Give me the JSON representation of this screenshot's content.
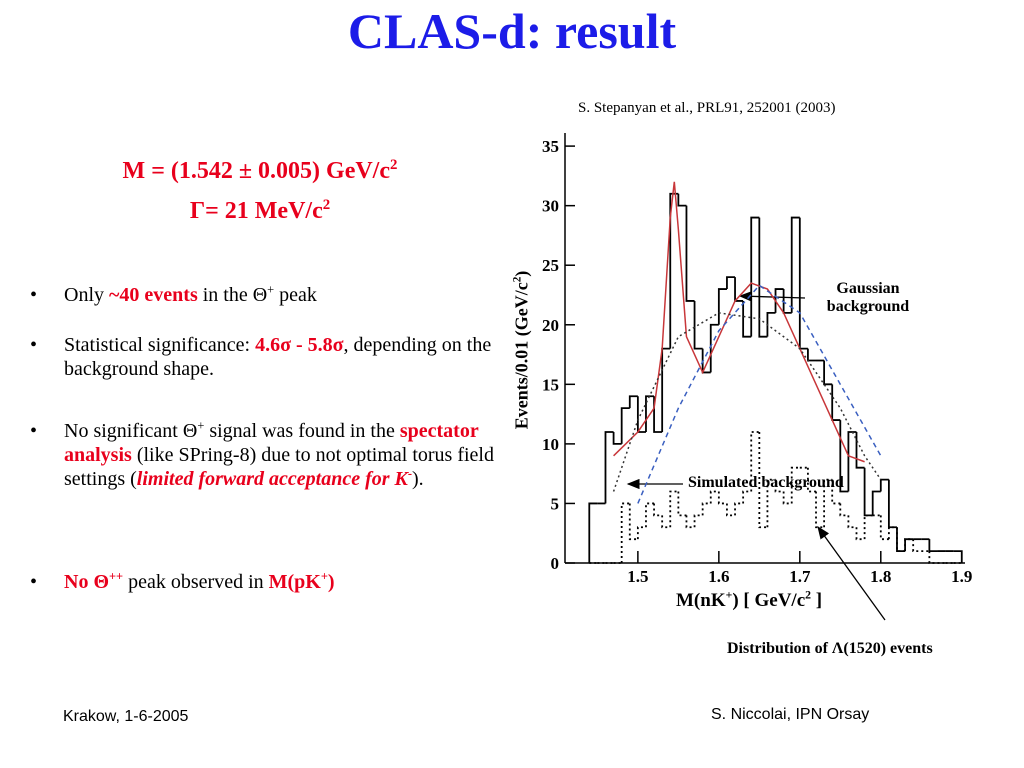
{
  "title": "CLAS-d: result",
  "reference": "S. Stepanyan et al., PRL91, 252001 (2003)",
  "result": [
    {
      "runs": [
        {
          "text": "M = (1.542 ± 0.005) GeV/c"
        },
        {
          "text": "2",
          "sup": true
        }
      ]
    },
    {
      "runs": [
        {
          "text": "Γ= 21 MeV/c"
        },
        {
          "text": "2",
          "sup": true
        }
      ]
    }
  ],
  "bullets": [
    {
      "runs": [
        {
          "text": "Only "
        },
        {
          "text": "~40 events",
          "color": "#e8001c",
          "bold": true
        },
        {
          "text": " in the Θ"
        },
        {
          "text": "+",
          "sup": true
        },
        {
          "text": " peak"
        }
      ]
    },
    {
      "runs": [
        {
          "text": "Statistical significance: "
        },
        {
          "text": "4.6σ - 5.8σ",
          "color": "#e8001c",
          "bold": true
        },
        {
          "text": ", depending on the background shape."
        }
      ]
    },
    {
      "runs": [
        {
          "text": "No significant Θ"
        },
        {
          "text": "+",
          "sup": true
        },
        {
          "text": " signal was found in the "
        },
        {
          "text": "spectator analysis",
          "color": "#e8001c",
          "bold": true
        },
        {
          "text": " (like SPring-8) due to not optimal torus field settings ("
        },
        {
          "text": "limited forward acceptance for K",
          "color": "#e8001c",
          "bold": true,
          "italic": true
        },
        {
          "text": "-",
          "color": "#e8001c",
          "bold": true,
          "sup": true
        },
        {
          "text": ")."
        }
      ]
    },
    {
      "runs": [
        {
          "text": "No Θ",
          "color": "#e8001c",
          "bold": true
        },
        {
          "text": "++",
          "color": "#e8001c",
          "bold": true,
          "sup": true
        },
        {
          "text": " peak observed in "
        },
        {
          "text": "M(pK",
          "color": "#e8001c",
          "bold": true
        },
        {
          "text": "+",
          "color": "#e8001c",
          "bold": true,
          "sup": true
        },
        {
          "text": ")",
          "color": "#e8001c",
          "bold": true
        }
      ]
    }
  ],
  "chart_data": {
    "type": "histogram",
    "xlabel": {
      "runs": [
        {
          "text": "M(nK"
        },
        {
          "text": "+",
          "sup": true
        },
        {
          "text": ") [ GeV/c"
        },
        {
          "text": "2",
          "sup": true
        },
        {
          "text": " ]"
        }
      ]
    },
    "ylabel": {
      "runs": [
        {
          "text": "Events/0.01 (GeV/c"
        },
        {
          "text": "2",
          "sup": true
        },
        {
          "text": ")"
        }
      ]
    },
    "xlim": [
      1.41,
      1.904
    ],
    "ylim": [
      0,
      36.1
    ],
    "xticks": [
      1.5,
      1.6,
      1.7,
      1.8,
      1.9
    ],
    "yticks": [
      0,
      5,
      10,
      15,
      20,
      25,
      30,
      35
    ],
    "bins": [
      1.44,
      1.45,
      1.46,
      1.47,
      1.48,
      1.49,
      1.5,
      1.51,
      1.52,
      1.53,
      1.54,
      1.55,
      1.56,
      1.57,
      1.58,
      1.59,
      1.6,
      1.61,
      1.62,
      1.63,
      1.64,
      1.65,
      1.66,
      1.67,
      1.68,
      1.69,
      1.7,
      1.71,
      1.72,
      1.73,
      1.74,
      1.75,
      1.76,
      1.77,
      1.78,
      1.79,
      1.8,
      1.81,
      1.82,
      1.83,
      1.84,
      1.85,
      1.86,
      1.87,
      1.88,
      1.89,
      1.9
    ],
    "series": [
      {
        "style": "solid",
        "color": "#000000",
        "values": [
          5,
          5,
          11,
          10,
          13,
          14,
          11,
          14,
          11,
          18,
          31,
          30,
          22,
          18,
          16,
          20,
          23,
          24,
          22,
          19,
          29,
          19,
          21,
          23,
          21,
          29,
          18,
          17,
          17,
          15,
          12,
          6,
          11,
          8,
          4,
          6,
          7,
          3,
          1,
          2,
          2,
          2,
          1,
          1,
          1,
          1
        ]
      },
      {
        "style": "dotted",
        "color": "#000000",
        "values": [
          0,
          0,
          0,
          0,
          5,
          2,
          3,
          5,
          4,
          3,
          6,
          4,
          3,
          4,
          5,
          6,
          5,
          4,
          5,
          6,
          11,
          3,
          7,
          6,
          5,
          8,
          8,
          6,
          3,
          7,
          5,
          4,
          3,
          2,
          4,
          4,
          2,
          3,
          1,
          2,
          1,
          1,
          0,
          0,
          0,
          0
        ]
      }
    ],
    "curves": [
      {
        "style": "solid",
        "color": "#c8373a",
        "x": [
          1.47,
          1.5,
          1.52,
          1.53,
          1.54,
          1.545,
          1.55,
          1.56,
          1.58,
          1.6,
          1.62,
          1.64,
          1.66,
          1.68,
          1.7,
          1.72,
          1.74,
          1.76,
          1.78
        ],
        "values": [
          9,
          11,
          13,
          18,
          29,
          32,
          28,
          19,
          16,
          19,
          22,
          23.5,
          23,
          21,
          18,
          15,
          12,
          9,
          8.5
        ]
      },
      {
        "style": "dashed",
        "color": "#3a5fc0",
        "x": [
          1.5,
          1.55,
          1.6,
          1.65,
          1.7,
          1.75,
          1.8
        ],
        "values": [
          5,
          13,
          19.5,
          23.3,
          21,
          15,
          9
        ]
      },
      {
        "style": "dotted",
        "color": "#333333",
        "x": [
          1.47,
          1.5,
          1.55,
          1.6,
          1.65,
          1.7,
          1.75,
          1.78,
          1.8
        ],
        "values": [
          6,
          12,
          19,
          21,
          20.5,
          18,
          13,
          9,
          7
        ]
      }
    ],
    "annotations": [
      {
        "runs": [
          {
            "text": "Gaussian background"
          }
        ]
      },
      {
        "runs": [
          {
            "text": "Simulated background"
          }
        ]
      },
      {
        "runs": [
          {
            "text": "Distribution of Λ(1520) events"
          }
        ]
      }
    ]
  },
  "footer": {
    "left": "Krakow, 1-6-2005",
    "right": "S. Niccolai, IPN Orsay"
  }
}
